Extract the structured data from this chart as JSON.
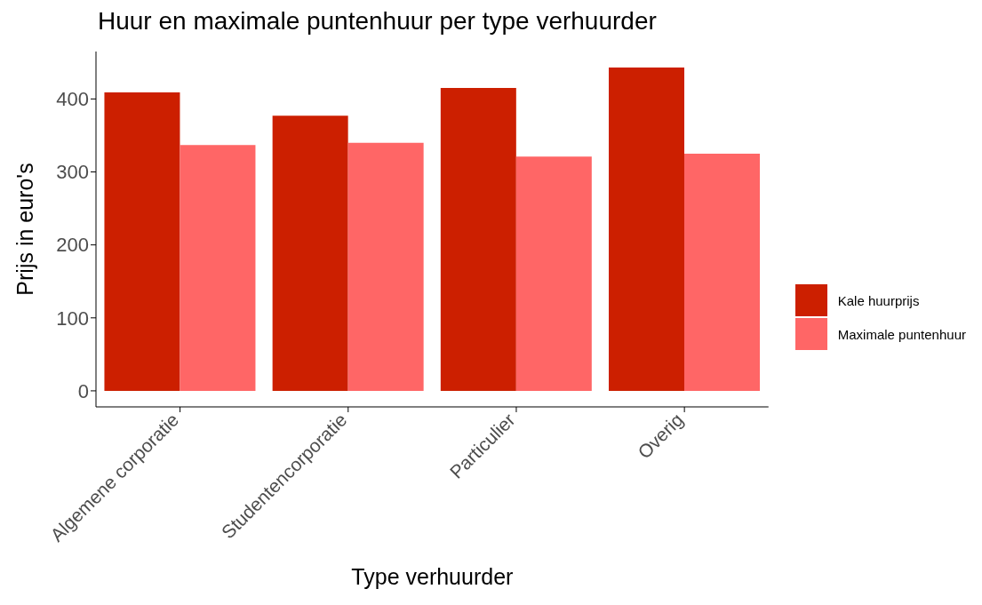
{
  "chart_data": {
    "type": "bar",
    "title": "Huur en maximale puntenhuur per type verhuurder",
    "xlabel": "Type verhuurder",
    "ylabel": "Prijs in euro's",
    "categories": [
      "Algemene corporatie",
      "Studentencorporatie",
      "Particulier",
      "Overig"
    ],
    "series": [
      {
        "name": "Kale huurprijs",
        "color": "#cc1f00",
        "values": [
          409,
          377,
          415,
          443
        ]
      },
      {
        "name": "Maximale puntenhuur",
        "color": "#ff6666",
        "values": [
          337,
          340,
          321,
          325
        ]
      }
    ],
    "ylim": [
      -22,
      465
    ],
    "yticks": [
      0,
      100,
      200,
      300,
      400
    ],
    "grid": false,
    "legend": "right"
  }
}
